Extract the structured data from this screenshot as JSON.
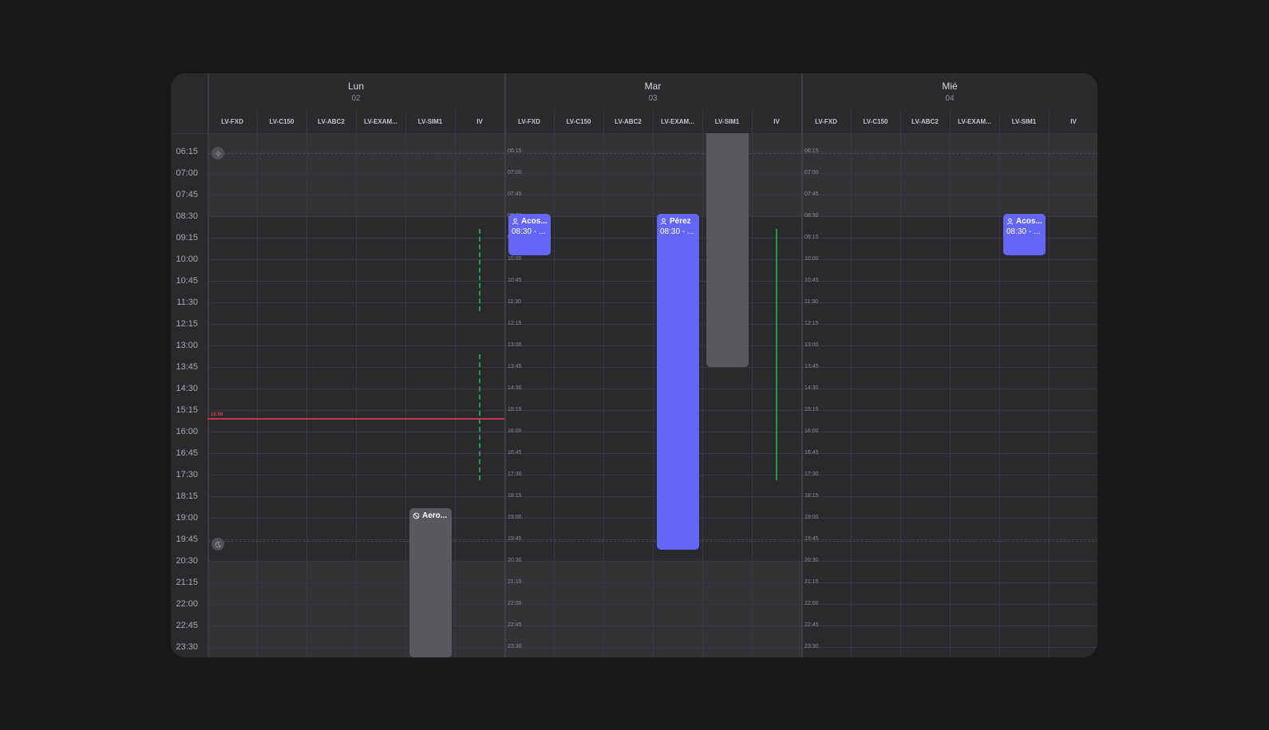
{
  "days": [
    {
      "name": "Lun",
      "num": "02"
    },
    {
      "name": "Mar",
      "num": "03"
    },
    {
      "name": "Mié",
      "num": "04"
    }
  ],
  "resources": [
    "LV-FXD",
    "LV-C150",
    "LV-ABC2",
    "LV-EXAM...",
    "LV-SIM1",
    "IV"
  ],
  "times": [
    "06:15",
    "07:00",
    "07:45",
    "08:30",
    "09:15",
    "10:00",
    "10:45",
    "11:30",
    "12:15",
    "13:00",
    "13:45",
    "14:30",
    "15:15",
    "16:00",
    "16:45",
    "17:30",
    "18:15",
    "19:00",
    "19:45",
    "20:30",
    "21:15",
    "22:00",
    "22:45",
    "23:30"
  ],
  "now_label": "15:50",
  "events": [
    {
      "id": "lun-sim1-aero",
      "title": "Aero...",
      "time": "",
      "color": "grey",
      "icon": "ban-icon"
    },
    {
      "id": "mar-fxd-acos",
      "title": "Acos...",
      "time": "08:30 - ...",
      "color": "blue",
      "icon": "person-icon"
    },
    {
      "id": "mar-exam-perez",
      "title": "Pérez",
      "time": "08:30 - ...",
      "color": "blue",
      "icon": "person-icon"
    },
    {
      "id": "mar-sim1-block",
      "title": "",
      "time": "",
      "color": "grey",
      "icon": ""
    },
    {
      "id": "mie-sim1-acos",
      "title": "Acos...",
      "time": "08:30 - ...",
      "color": "blue",
      "icon": "person-icon"
    }
  ],
  "colors": {
    "accent": "#6366f7",
    "now": "#c0394a",
    "availability": "#1f9d4d",
    "blocked": "#58585e"
  },
  "markers": {
    "sunrise": "sun-icon",
    "sunset": "moon-icon"
  }
}
